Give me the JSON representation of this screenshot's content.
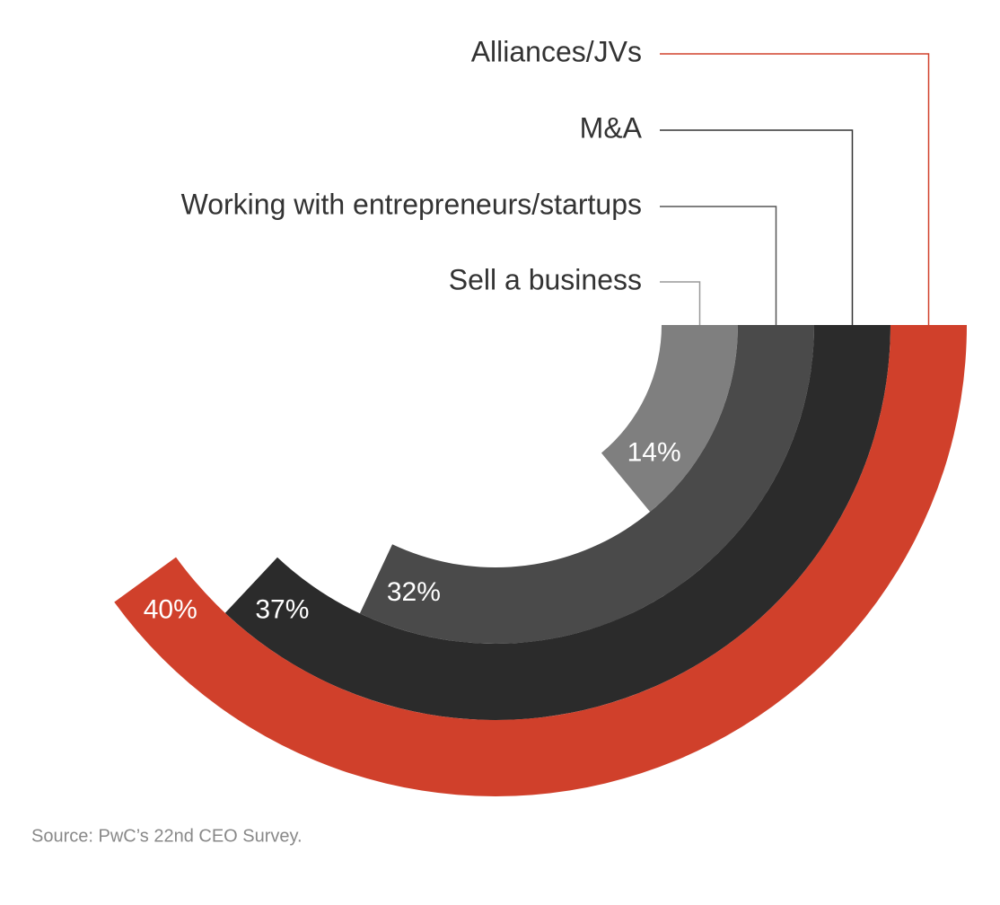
{
  "chart_data": {
    "type": "radial-bar",
    "categories": [
      "Sell a business",
      "Working with entrepreneurs/startups",
      "M&A",
      "Alliances/JVs"
    ],
    "values": [
      14,
      32,
      37,
      40
    ],
    "value_labels": [
      "14%",
      "32%",
      "37%",
      "40%"
    ],
    "colors": [
      "#7f7f7f",
      "#4a4a4a",
      "#2b2b2b",
      "#d0402b"
    ],
    "leader_colors": [
      "#999999",
      "#555555",
      "#333333",
      "#d0402b"
    ],
    "ylim": [
      0,
      100
    ],
    "source": "Source: PwC’s 22nd CEO Survey."
  }
}
